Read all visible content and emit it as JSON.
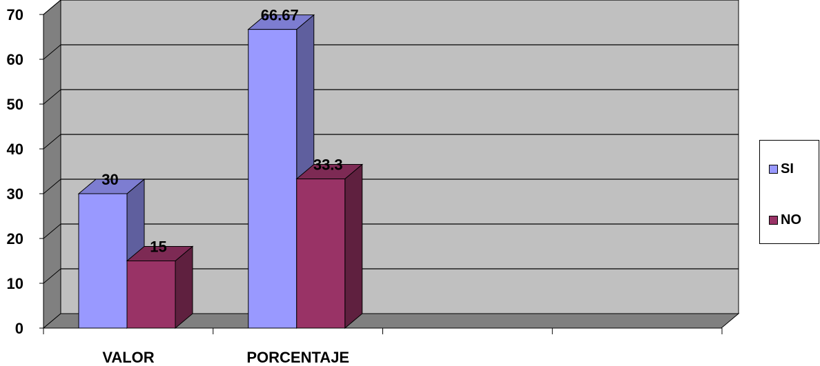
{
  "chart_data": {
    "type": "bar",
    "categories": [
      "VALOR",
      "PORCENTAJE"
    ],
    "series": [
      {
        "name": "SI",
        "values": [
          30,
          66.67
        ],
        "labels": [
          "30",
          "66.67"
        ],
        "color": "#9999ff"
      },
      {
        "name": "NO",
        "values": [
          15,
          33.3
        ],
        "labels": [
          "15",
          "33.3"
        ],
        "color": "#993366"
      }
    ],
    "ylim": [
      0,
      70
    ],
    "yticks": [
      0,
      10,
      20,
      30,
      40,
      50,
      60,
      70
    ],
    "ytick_labels": [
      "0",
      "10",
      "20",
      "30",
      "40",
      "50",
      "60",
      "70"
    ],
    "grid": true,
    "background": "#c0c0c0",
    "legend_position": "right",
    "three_d": true
  }
}
